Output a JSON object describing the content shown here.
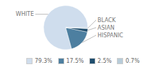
{
  "chart_data": {
    "type": "pie",
    "categories": [
      "WHITE",
      "HISPANIC",
      "ASIAN",
      "BLACK"
    ],
    "values": [
      79.3,
      17.5,
      2.5,
      0.7
    ],
    "value_labels": [
      "79.3%",
      "17.5%",
      "2.5%",
      "0.7%"
    ],
    "colors": [
      "#cfdded",
      "#4d7fa0",
      "#1f4e6e",
      "#b8ccd9"
    ],
    "legend": "bottom"
  }
}
